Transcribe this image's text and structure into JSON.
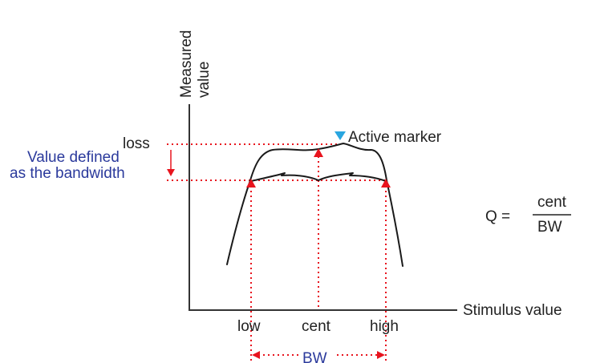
{
  "axes": {
    "y_label_line1": "Measured",
    "y_label_line2": "value",
    "x_label": "Stimulus value"
  },
  "levels": {
    "loss_label": "loss"
  },
  "bandwidth_note": {
    "line1": "Value defined",
    "line2": "as the bandwidth"
  },
  "marker": {
    "label": "Active marker",
    "color": "#29a6e0"
  },
  "ticks": {
    "low": "low",
    "cent": "cent",
    "high": "high"
  },
  "bw_label": "BW",
  "formula": {
    "lhs": "Q =",
    "numerator": "cent",
    "denominator": "BW"
  },
  "colors": {
    "accent_red": "#e8141e",
    "text_blue": "#2b3a9c",
    "curve": "#1a1a1a"
  }
}
